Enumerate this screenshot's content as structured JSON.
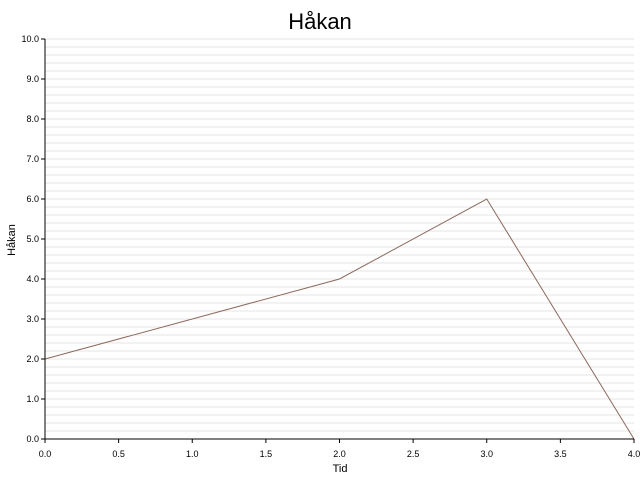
{
  "chart_data": {
    "type": "line",
    "title": "Håkan",
    "xlabel": "Tid",
    "ylabel": "Håkan",
    "x": [
      0,
      2,
      3,
      4
    ],
    "series": [
      {
        "values": [
          2,
          4,
          6,
          0
        ],
        "color": "#8c6a5e"
      }
    ],
    "xlim": [
      0,
      4
    ],
    "ylim": [
      0,
      10
    ],
    "xticks": [
      "0.0",
      "0.5",
      "1.0",
      "1.5",
      "2.0",
      "2.5",
      "3.0",
      "3.5",
      "4.0"
    ],
    "yticks": [
      "0.0",
      "1.0",
      "2.0",
      "3.0",
      "4.0",
      "5.0",
      "6.0",
      "7.0",
      "8.0",
      "9.0",
      "10.0"
    ],
    "grid": true,
    "grid_color": "#e5e5e5",
    "axis_color": "#000000"
  }
}
